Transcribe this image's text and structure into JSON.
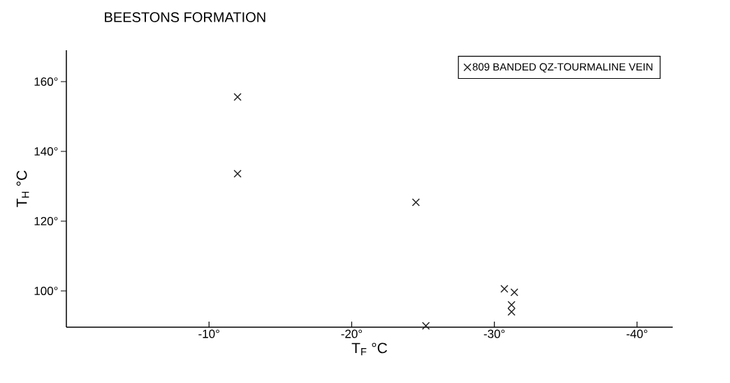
{
  "chart_data": {
    "type": "scatter",
    "title": "BEESTONS FORMATION",
    "xlabel": "T$_{F}$ °C",
    "ylabel": "T$_{H}$ °C",
    "xlim": [
      0,
      -42.5
    ],
    "ylim": [
      89.6,
      169
    ],
    "xticks": [
      {
        "value": -10,
        "label": "-10°"
      },
      {
        "value": -20,
        "label": "-20°"
      },
      {
        "value": -30,
        "label": "-30°"
      },
      {
        "value": -40,
        "label": "-40°"
      }
    ],
    "yticks": [
      {
        "value": 100,
        "label": "100°"
      },
      {
        "value": 120,
        "label": "120°"
      },
      {
        "value": 140,
        "label": "140°"
      },
      {
        "value": 160,
        "label": "160°"
      }
    ],
    "series": [
      {
        "name": "809 BANDED QZ-TOURMALINE VEIN",
        "color": "#222222",
        "x": [
          -12,
          -12,
          -24.5,
          -25.2,
          -30.7,
          -31.4,
          -31.2,
          -31.2
        ],
        "values": [
          155.6,
          133.6,
          125.4,
          90,
          100.6,
          99.6,
          96,
          94
        ]
      }
    ],
    "marker": "cross",
    "legend": "top right",
    "grid": false
  }
}
